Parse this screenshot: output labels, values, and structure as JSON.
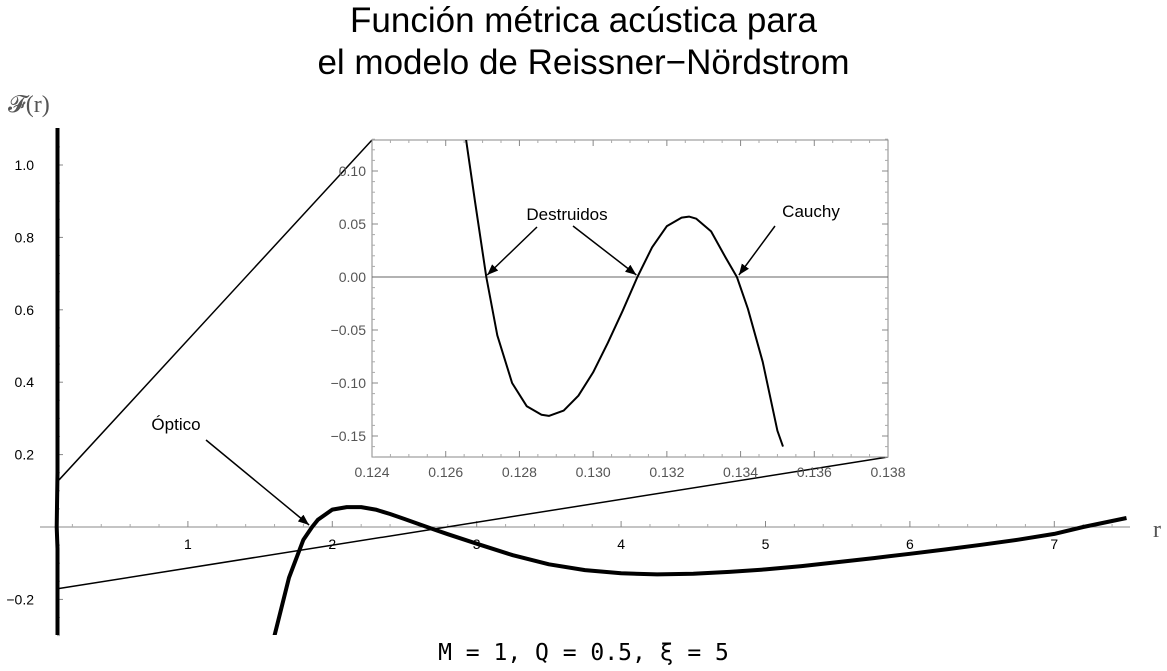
{
  "title": {
    "line1": "Función métrica acústica para",
    "line2": "el modelo de Reissner−Nördstrom"
  },
  "footer": {
    "params": "M = 1, Q = 0.5, ξ = 5"
  },
  "chart_data": [
    {
      "type": "line",
      "name": "main",
      "xlabel": "r",
      "ylabel": "𝓕(r)",
      "xlim": [
        0,
        7.5
      ],
      "ylim": [
        -0.3,
        1.1
      ],
      "x_ticks": [
        1,
        2,
        3,
        4,
        5,
        6,
        7
      ],
      "x_tick_labels": [
        "1",
        "2",
        "3",
        "4",
        "5",
        "6",
        "7"
      ],
      "y_ticks": [
        -0.2,
        0.2,
        0.4,
        0.6,
        0.8,
        1.0
      ],
      "y_tick_labels": [
        "−0.2",
        "0.2",
        "0.4",
        "0.6",
        "0.8",
        "1.0"
      ],
      "grid": false,
      "series": [
        {
          "x": [
            0.124,
            0.126,
            0.127,
            0.1287,
            0.131,
            0.1326,
            0.134,
            0.135,
            0.16,
            0.18
          ],
          "y": [
            1.1,
            0.2,
            0.0,
            -0.13,
            0.0,
            0.056,
            0.0,
            -0.16,
            -0.3,
            -0.3
          ]
        },
        {
          "x": [
            1.6,
            1.7,
            1.8,
            1.86,
            1.9,
            2.0,
            2.1,
            2.2,
            2.3,
            2.4,
            2.5,
            2.6,
            2.7,
            2.8,
            3.0,
            3.25,
            3.5,
            3.75,
            4.0,
            4.25,
            4.5,
            4.75,
            5.0,
            5.25,
            5.5,
            5.75,
            6.0,
            6.25,
            6.5,
            6.75,
            7.0,
            7.2,
            7.5
          ],
          "y": [
            -0.3,
            -0.14,
            -0.035,
            0.0,
            0.02,
            0.048,
            0.055,
            0.055,
            0.048,
            0.036,
            0.022,
            0.008,
            -0.006,
            -0.02,
            -0.046,
            -0.078,
            -0.103,
            -0.119,
            -0.128,
            -0.131,
            -0.129,
            -0.124,
            -0.117,
            -0.108,
            -0.097,
            -0.086,
            -0.074,
            -0.062,
            -0.049,
            -0.035,
            -0.019,
            0.0,
            0.025
          ]
        }
      ],
      "annotations": [
        {
          "text": "Óptico",
          "x": 1.4,
          "y": 0.28,
          "point_x": 1.86,
          "point_y": 0.0
        }
      ]
    },
    {
      "type": "line",
      "name": "inset",
      "xlim": [
        0.124,
        0.138
      ],
      "ylim": [
        -0.17,
        0.13
      ],
      "x_ticks": [
        0.124,
        0.126,
        0.128,
        0.13,
        0.132,
        0.134,
        0.136,
        0.138
      ],
      "x_tick_labels": [
        "0.124",
        "0.126",
        "0.128",
        "0.130",
        "0.132",
        "0.134",
        "0.136",
        "0.138"
      ],
      "y_ticks": [
        -0.15,
        -0.1,
        -0.05,
        0.0,
        0.05,
        0.1
      ],
      "y_tick_labels": [
        "−0.15",
        "−0.10",
        "−0.05",
        "0.00",
        "0.05",
        "0.10"
      ],
      "grid": false,
      "series": [
        {
          "x": [
            0.12655,
            0.1268,
            0.1271,
            0.1274,
            0.1278,
            0.1282,
            0.1286,
            0.1288,
            0.1292,
            0.1296,
            0.13,
            0.1304,
            0.1308,
            0.1312,
            0.1316,
            0.132,
            0.1324,
            0.1326,
            0.1328,
            0.1332,
            0.1336,
            0.1339,
            0.1342,
            0.1346,
            0.135,
            0.13515
          ],
          "y": [
            0.13,
            0.07,
            0.0,
            -0.055,
            -0.1,
            -0.122,
            -0.13,
            -0.131,
            -0.126,
            -0.112,
            -0.09,
            -0.062,
            -0.032,
            0.0,
            0.028,
            0.048,
            0.056,
            0.057,
            0.055,
            0.043,
            0.018,
            0.0,
            -0.03,
            -0.08,
            -0.145,
            -0.16
          ]
        }
      ],
      "annotations": [
        {
          "text": "Destruidos",
          "x": 0.1288,
          "y": 0.058,
          "targets": [
            [
              0.1271,
              0.0
            ],
            [
              0.1312,
              0.0
            ]
          ]
        },
        {
          "text": "Cauchy",
          "x": 0.13425,
          "y": 0.06,
          "targets": [
            [
              0.1339,
              0.0
            ]
          ]
        }
      ]
    }
  ]
}
